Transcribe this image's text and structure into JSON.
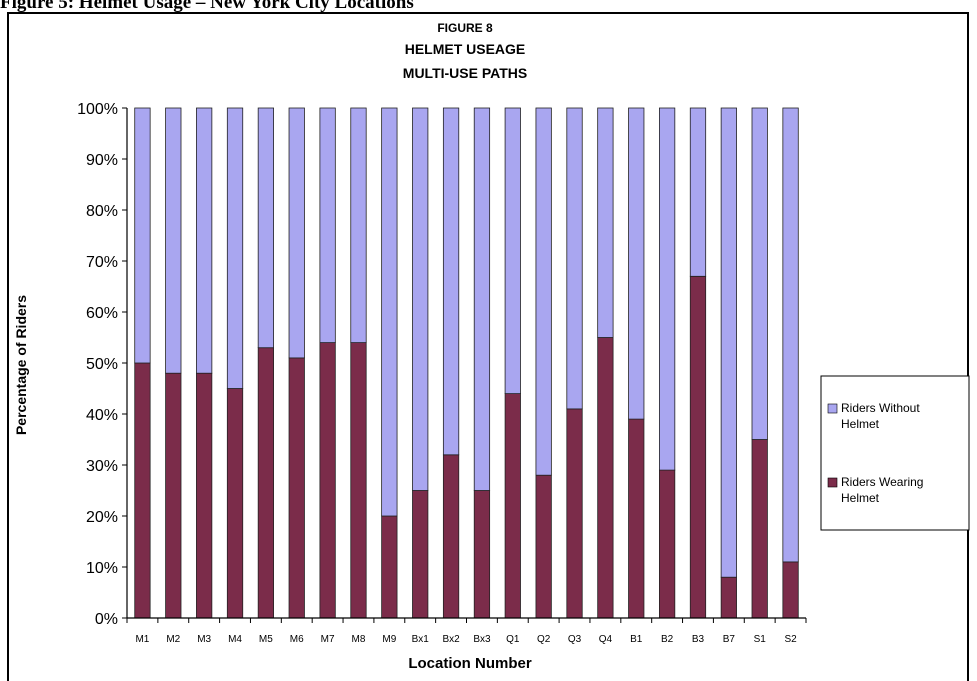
{
  "caption": "Figure 5: Helmet Usage – New York City Locations",
  "chart_data": {
    "type": "bar",
    "stacked": true,
    "title_lines": [
      "FIGURE 8",
      "HELMET USEAGE",
      "MULTI-USE PATHS"
    ],
    "xlabel": "Location Number",
    "ylabel": "Percentage of Riders",
    "ylim": [
      0,
      100
    ],
    "y_ticks": [
      "0%",
      "10%",
      "20%",
      "30%",
      "40%",
      "50%",
      "60%",
      "70%",
      "80%",
      "90%",
      "100%"
    ],
    "grid": false,
    "legend_position": "right",
    "categories": [
      "M1",
      "M2",
      "M3",
      "M4",
      "M5",
      "M6",
      "M7",
      "M8",
      "M9",
      "Bx1",
      "Bx2",
      "Bx3",
      "Q1",
      "Q2",
      "Q3",
      "Q4",
      "B1",
      "B2",
      "B3",
      "B7",
      "S1",
      "S2"
    ],
    "series": [
      {
        "name": "Riders Wearing Helmet",
        "legend_lines": [
          "Riders Wearing",
          "Helmet"
        ],
        "color": "#7b2c4a",
        "values": [
          50,
          48,
          48,
          45,
          53,
          51,
          54,
          54,
          20,
          25,
          32,
          25,
          44,
          28,
          41,
          55,
          39,
          29,
          67,
          8,
          35,
          11
        ]
      },
      {
        "name": "Riders Without Helmet",
        "legend_lines": [
          "Riders Without",
          "Helmet"
        ],
        "color": "#a9a6f0",
        "values": [
          50,
          52,
          52,
          55,
          47,
          49,
          46,
          46,
          80,
          75,
          68,
          75,
          56,
          72,
          59,
          45,
          61,
          71,
          33,
          92,
          65,
          89
        ]
      }
    ]
  }
}
